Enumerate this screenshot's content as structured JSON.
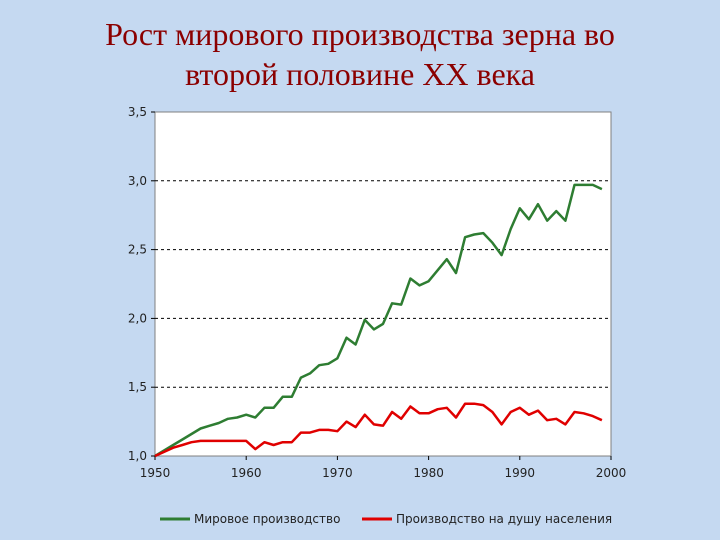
{
  "slide": {
    "title_line1": "Рост мирового производства зерна во",
    "title_line2": "второй половине XX века"
  },
  "chart_data": {
    "type": "line",
    "x": [
      1950,
      1951,
      1952,
      1953,
      1954,
      1955,
      1956,
      1957,
      1958,
      1959,
      1960,
      1961,
      1962,
      1963,
      1964,
      1965,
      1966,
      1967,
      1968,
      1969,
      1970,
      1971,
      1972,
      1973,
      1974,
      1975,
      1976,
      1977,
      1978,
      1979,
      1980,
      1981,
      1982,
      1983,
      1984,
      1985,
      1986,
      1987,
      1988,
      1989,
      1990,
      1991,
      1992,
      1993,
      1994,
      1995,
      1996,
      1997,
      1998,
      1999
    ],
    "series": [
      {
        "name": "Мировое производство",
        "color": "#2e7d32",
        "values": [
          1.0,
          1.04,
          1.08,
          1.12,
          1.16,
          1.2,
          1.22,
          1.24,
          1.27,
          1.28,
          1.3,
          1.28,
          1.35,
          1.35,
          1.43,
          1.43,
          1.57,
          1.6,
          1.66,
          1.67,
          1.71,
          1.86,
          1.81,
          1.99,
          1.92,
          1.96,
          2.11,
          2.1,
          2.29,
          2.24,
          2.27,
          2.35,
          2.43,
          2.33,
          2.59,
          2.61,
          2.62,
          2.55,
          2.46,
          2.65,
          2.8,
          2.72,
          2.83,
          2.71,
          2.78,
          2.71,
          2.97,
          2.97,
          2.97,
          2.94
        ]
      },
      {
        "name": "Производство на душу населения",
        "color": "#e00000",
        "values": [
          1.0,
          1.03,
          1.06,
          1.08,
          1.1,
          1.11,
          1.11,
          1.11,
          1.11,
          1.11,
          1.11,
          1.05,
          1.1,
          1.08,
          1.1,
          1.1,
          1.17,
          1.17,
          1.19,
          1.19,
          1.18,
          1.25,
          1.21,
          1.3,
          1.23,
          1.22,
          1.32,
          1.27,
          1.36,
          1.31,
          1.31,
          1.34,
          1.35,
          1.28,
          1.38,
          1.38,
          1.37,
          1.32,
          1.23,
          1.32,
          1.35,
          1.3,
          1.33,
          1.26,
          1.27,
          1.23,
          1.32,
          1.31,
          1.29,
          1.26
        ]
      }
    ],
    "ylim": [
      1.0,
      3.5
    ],
    "xlim": [
      1950,
      2000
    ],
    "yticks": [
      "1,0",
      "1,5",
      "2,0",
      "2,5",
      "3,0",
      "3,5"
    ],
    "yticks_values": [
      1.0,
      1.5,
      2.0,
      2.5,
      3.0,
      3.5
    ],
    "xticks": [
      "1950",
      "1960",
      "1970",
      "1980",
      "1990",
      "2000"
    ],
    "xticks_values": [
      1950,
      1960,
      1970,
      1980,
      1990,
      2000
    ],
    "grid": "horizontal dashed",
    "legend_position": "bottom"
  },
  "colors": {
    "background": "#c5d9f1",
    "title": "#8b0000",
    "plot_area": "#ffffff"
  }
}
